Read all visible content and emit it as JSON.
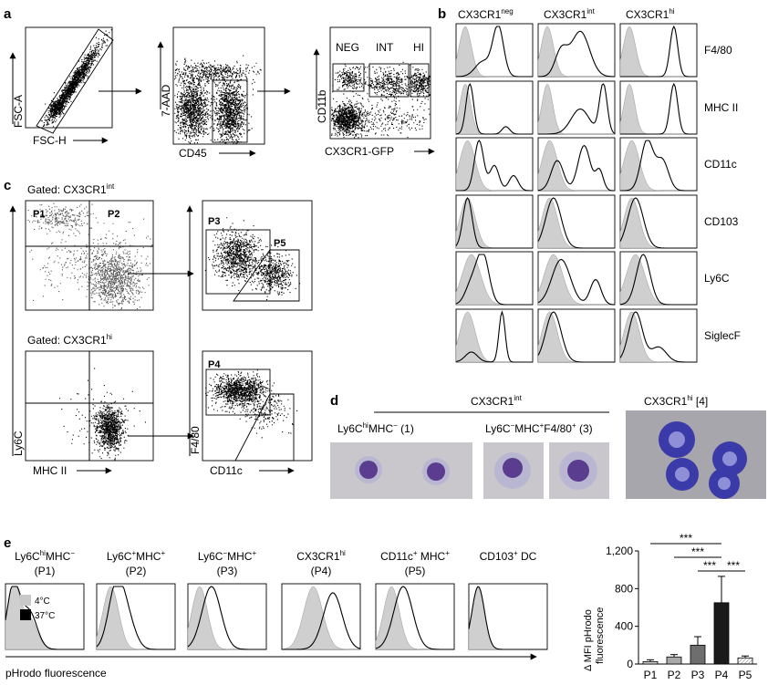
{
  "panels": {
    "a": "a",
    "b": "b",
    "c": "c",
    "d": "d",
    "e": "e"
  },
  "a": {
    "p1": {
      "y": "FSC-A",
      "x": "FSC-H"
    },
    "p2": {
      "y": "7-AAD",
      "x": "CD45"
    },
    "p3": {
      "y": "CD11b",
      "x": "CX3CR1-GFP",
      "gates": [
        "NEG",
        "INT",
        "HI"
      ]
    }
  },
  "b": {
    "columns": [
      {
        "base": "CX3CR1",
        "sup": "neg"
      },
      {
        "base": "CX3CR1",
        "sup": "int"
      },
      {
        "base": "CX3CR1",
        "sup": "hi"
      }
    ],
    "markers": [
      "F4/80",
      "MHC II",
      "CD11c",
      "CD103",
      "Ly6C",
      "SiglecF"
    ]
  },
  "c": {
    "top_gated": {
      "pre": "Gated: CX3CR1",
      "sup": "int"
    },
    "bottom_gated": {
      "pre": "Gated: CX3CR1",
      "sup": "hi"
    },
    "ylabel": "Ly6C",
    "xlabel": "MHC II",
    "right_ylabel": "F4/80",
    "right_xlabel": "CD11c",
    "gates": {
      "p1": "P1",
      "p2": "P2",
      "p3": "P3",
      "p4": "P4",
      "p5": "P5"
    }
  },
  "d": {
    "group_title": {
      "base": "CX3CR1",
      "sup": "int"
    },
    "cap1": {
      "a": "Ly6C",
      "sup": "hi",
      "b": "MHC",
      "sup2": "−",
      "c": " (1)"
    },
    "cap2": {
      "a": "Ly6C",
      "sup": "−",
      "b": "MHC",
      "sup2": "+",
      "c": "F4/80",
      "sup3": "+",
      "d": " (3)"
    },
    "cap3": {
      "base": "CX3CR1",
      "sup": "hi",
      "rest": " [4]"
    }
  },
  "e": {
    "hist_titles": [
      {
        "l1a": "Ly6C",
        "l1s": "hi",
        "l1b": "MHC",
        "l1s2": "−",
        "l2": "(P1)"
      },
      {
        "l1a": "Ly6C",
        "l1s": "+",
        "l1b": "MHC",
        "l1s2": "+",
        "l2": "(P2)"
      },
      {
        "l1a": "Ly6C",
        "l1s": "−",
        "l1b": "MHC",
        "l1s2": "+",
        "l2": "(P3)"
      },
      {
        "l1a": "CX3CR1",
        "l1s": "hi",
        "l1b": "",
        "l1s2": "",
        "l2": "(P4)"
      },
      {
        "l1a": "CD11c",
        "l1s": "+",
        "l1b": " MHC",
        "l1s2": "+",
        "l2": "(P5)"
      },
      {
        "l1a": "CD103",
        "l1s": "+",
        "l1b": " DC",
        "l1s2": "",
        "l2": ""
      }
    ],
    "legend": [
      "4°C",
      "37°C"
    ],
    "xlabel": "pHrodo fluorescence",
    "legend_colors": [
      "#c8c8c8",
      "#000000"
    ]
  },
  "chart_data": {
    "type": "bar",
    "categories": [
      "P1",
      "P2",
      "P3",
      "P4",
      "P5"
    ],
    "values": [
      25,
      75,
      200,
      650,
      65
    ],
    "errors": [
      20,
      25,
      90,
      280,
      20
    ],
    "colors": [
      "#d0d0d0",
      "#a8a8a8",
      "#6e6e6e",
      "#1a1a1a",
      "#f0f0f0"
    ],
    "ylabel_l1": "Δ MFI pHrodo",
    "ylabel_l2": "fluorescence",
    "ylim": [
      0,
      1200
    ],
    "yticks": [
      "0",
      "400",
      "800",
      "1,200"
    ],
    "significance": [
      "***",
      "***",
      "***",
      "***"
    ]
  }
}
